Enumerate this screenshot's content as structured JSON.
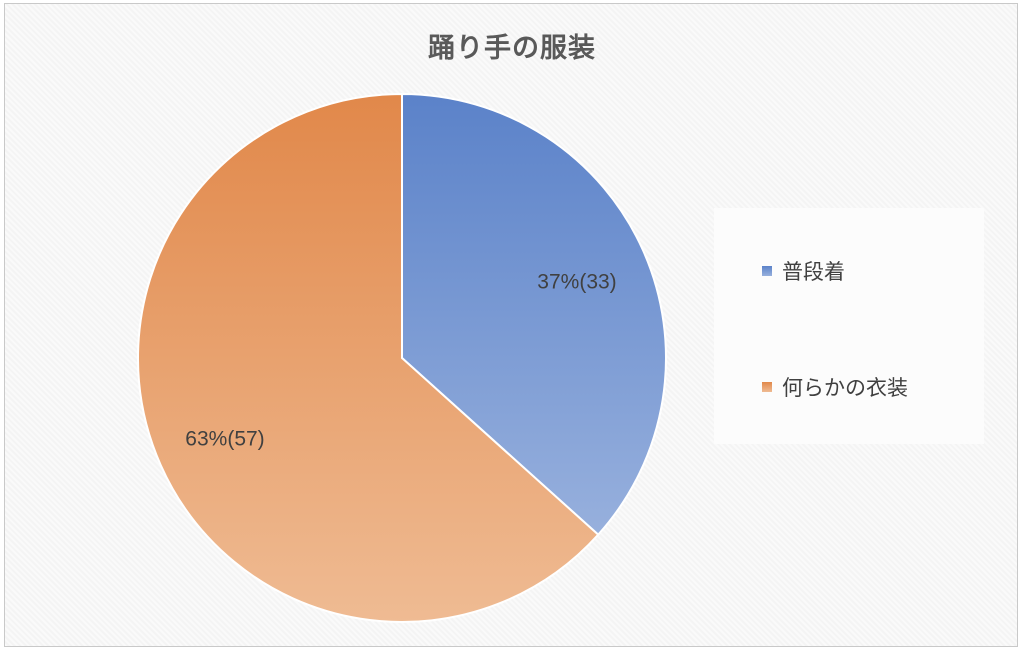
{
  "chart_data": {
    "type": "pie",
    "title": "踊り手の服装",
    "slices": [
      {
        "name": "普段着",
        "value": 33,
        "percent": 37,
        "label": "37%(33)",
        "color": "#5b82c9",
        "color_light": "#97b0dd",
        "icon": "square-legend-icon"
      },
      {
        "name": "何らかの衣装",
        "value": 57,
        "percent": 63,
        "label": "63%(57)",
        "color": "#e1884a",
        "color_light": "#efbb93",
        "icon": "square-legend-icon"
      }
    ],
    "legend_position": "right",
    "start_angle": "top, clockwise"
  }
}
